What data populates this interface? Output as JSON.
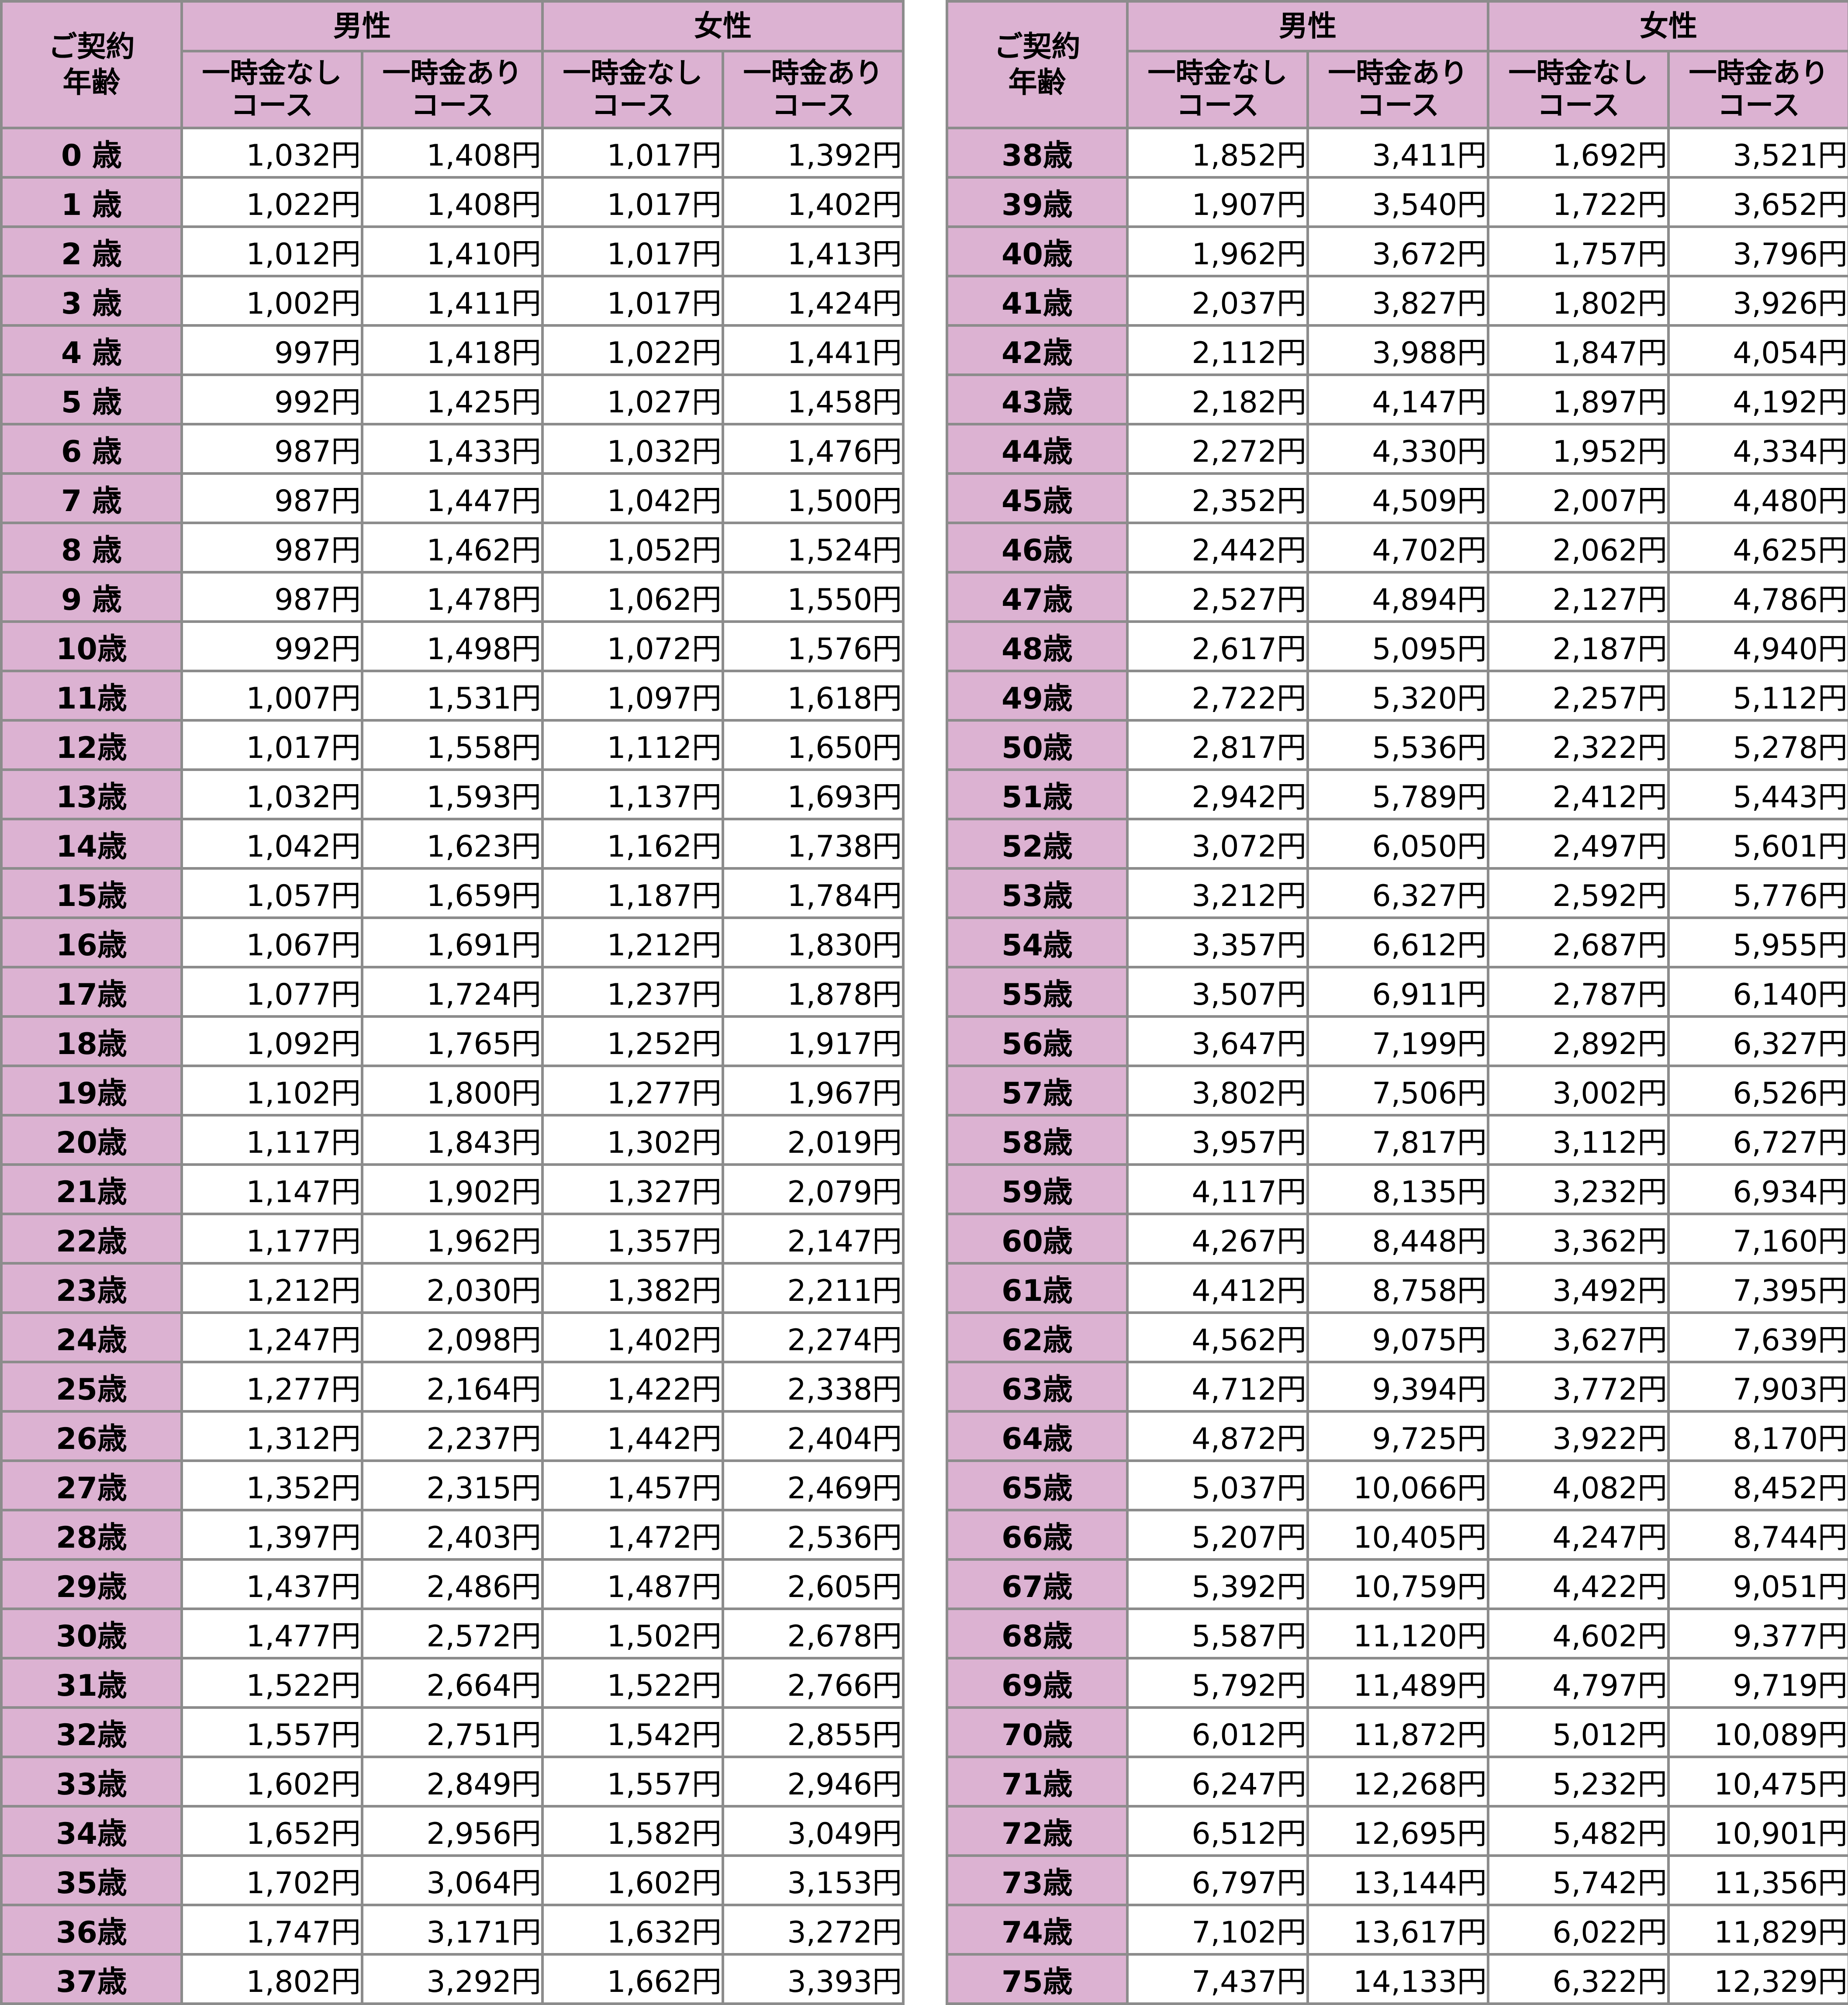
{
  "header": {
    "age_label_line1": "ご契約",
    "age_label_line2": "年齢",
    "male": "男性",
    "female": "女性",
    "course_without_line1": "一時金なし",
    "course_with_line1": "一時金あり",
    "course_line2": "コース"
  },
  "colors": {
    "header_bg": "#dcb2d2",
    "cell_bg": "#ffffff",
    "border": "#8c8c8c"
  },
  "columns": [
    "age",
    "male_without_lump_sum",
    "male_with_lump_sum",
    "female_without_lump_sum",
    "female_with_lump_sum"
  ],
  "left_rows": [
    [
      "0 歳",
      "1,032円",
      "1,408円",
      "1,017円",
      "1,392円"
    ],
    [
      "1 歳",
      "1,022円",
      "1,408円",
      "1,017円",
      "1,402円"
    ],
    [
      "2 歳",
      "1,012円",
      "1,410円",
      "1,017円",
      "1,413円"
    ],
    [
      "3 歳",
      "1,002円",
      "1,411円",
      "1,017円",
      "1,424円"
    ],
    [
      "4 歳",
      "997円",
      "1,418円",
      "1,022円",
      "1,441円"
    ],
    [
      "5 歳",
      "992円",
      "1,425円",
      "1,027円",
      "1,458円"
    ],
    [
      "6 歳",
      "987円",
      "1,433円",
      "1,032円",
      "1,476円"
    ],
    [
      "7 歳",
      "987円",
      "1,447円",
      "1,042円",
      "1,500円"
    ],
    [
      "8 歳",
      "987円",
      "1,462円",
      "1,052円",
      "1,524円"
    ],
    [
      "9 歳",
      "987円",
      "1,478円",
      "1,062円",
      "1,550円"
    ],
    [
      "10歳",
      "992円",
      "1,498円",
      "1,072円",
      "1,576円"
    ],
    [
      "11歳",
      "1,007円",
      "1,531円",
      "1,097円",
      "1,618円"
    ],
    [
      "12歳",
      "1,017円",
      "1,558円",
      "1,112円",
      "1,650円"
    ],
    [
      "13歳",
      "1,032円",
      "1,593円",
      "1,137円",
      "1,693円"
    ],
    [
      "14歳",
      "1,042円",
      "1,623円",
      "1,162円",
      "1,738円"
    ],
    [
      "15歳",
      "1,057円",
      "1,659円",
      "1,187円",
      "1,784円"
    ],
    [
      "16歳",
      "1,067円",
      "1,691円",
      "1,212円",
      "1,830円"
    ],
    [
      "17歳",
      "1,077円",
      "1,724円",
      "1,237円",
      "1,878円"
    ],
    [
      "18歳",
      "1,092円",
      "1,765円",
      "1,252円",
      "1,917円"
    ],
    [
      "19歳",
      "1,102円",
      "1,800円",
      "1,277円",
      "1,967円"
    ],
    [
      "20歳",
      "1,117円",
      "1,843円",
      "1,302円",
      "2,019円"
    ],
    [
      "21歳",
      "1,147円",
      "1,902円",
      "1,327円",
      "2,079円"
    ],
    [
      "22歳",
      "1,177円",
      "1,962円",
      "1,357円",
      "2,147円"
    ],
    [
      "23歳",
      "1,212円",
      "2,030円",
      "1,382円",
      "2,211円"
    ],
    [
      "24歳",
      "1,247円",
      "2,098円",
      "1,402円",
      "2,274円"
    ],
    [
      "25歳",
      "1,277円",
      "2,164円",
      "1,422円",
      "2,338円"
    ],
    [
      "26歳",
      "1,312円",
      "2,237円",
      "1,442円",
      "2,404円"
    ],
    [
      "27歳",
      "1,352円",
      "2,315円",
      "1,457円",
      "2,469円"
    ],
    [
      "28歳",
      "1,397円",
      "2,403円",
      "1,472円",
      "2,536円"
    ],
    [
      "29歳",
      "1,437円",
      "2,486円",
      "1,487円",
      "2,605円"
    ],
    [
      "30歳",
      "1,477円",
      "2,572円",
      "1,502円",
      "2,678円"
    ],
    [
      "31歳",
      "1,522円",
      "2,664円",
      "1,522円",
      "2,766円"
    ],
    [
      "32歳",
      "1,557円",
      "2,751円",
      "1,542円",
      "2,855円"
    ],
    [
      "33歳",
      "1,602円",
      "2,849円",
      "1,557円",
      "2,946円"
    ],
    [
      "34歳",
      "1,652円",
      "2,956円",
      "1,582円",
      "3,049円"
    ],
    [
      "35歳",
      "1,702円",
      "3,064円",
      "1,602円",
      "3,153円"
    ],
    [
      "36歳",
      "1,747円",
      "3,171円",
      "1,632円",
      "3,272円"
    ],
    [
      "37歳",
      "1,802円",
      "3,292円",
      "1,662円",
      "3,393円"
    ]
  ],
  "right_rows": [
    [
      "38歳",
      "1,852円",
      "3,411円",
      "1,692円",
      "3,521円"
    ],
    [
      "39歳",
      "1,907円",
      "3,540円",
      "1,722円",
      "3,652円"
    ],
    [
      "40歳",
      "1,962円",
      "3,672円",
      "1,757円",
      "3,796円"
    ],
    [
      "41歳",
      "2,037円",
      "3,827円",
      "1,802円",
      "3,926円"
    ],
    [
      "42歳",
      "2,112円",
      "3,988円",
      "1,847円",
      "4,054円"
    ],
    [
      "43歳",
      "2,182円",
      "4,147円",
      "1,897円",
      "4,192円"
    ],
    [
      "44歳",
      "2,272円",
      "4,330円",
      "1,952円",
      "4,334円"
    ],
    [
      "45歳",
      "2,352円",
      "4,509円",
      "2,007円",
      "4,480円"
    ],
    [
      "46歳",
      "2,442円",
      "4,702円",
      "2,062円",
      "4,625円"
    ],
    [
      "47歳",
      "2,527円",
      "4,894円",
      "2,127円",
      "4,786円"
    ],
    [
      "48歳",
      "2,617円",
      "5,095円",
      "2,187円",
      "4,940円"
    ],
    [
      "49歳",
      "2,722円",
      "5,320円",
      "2,257円",
      "5,112円"
    ],
    [
      "50歳",
      "2,817円",
      "5,536円",
      "2,322円",
      "5,278円"
    ],
    [
      "51歳",
      "2,942円",
      "5,789円",
      "2,412円",
      "5,443円"
    ],
    [
      "52歳",
      "3,072円",
      "6,050円",
      "2,497円",
      "5,601円"
    ],
    [
      "53歳",
      "3,212円",
      "6,327円",
      "2,592円",
      "5,776円"
    ],
    [
      "54歳",
      "3,357円",
      "6,612円",
      "2,687円",
      "5,955円"
    ],
    [
      "55歳",
      "3,507円",
      "6,911円",
      "2,787円",
      "6,140円"
    ],
    [
      "56歳",
      "3,647円",
      "7,199円",
      "2,892円",
      "6,327円"
    ],
    [
      "57歳",
      "3,802円",
      "7,506円",
      "3,002円",
      "6,526円"
    ],
    [
      "58歳",
      "3,957円",
      "7,817円",
      "3,112円",
      "6,727円"
    ],
    [
      "59歳",
      "4,117円",
      "8,135円",
      "3,232円",
      "6,934円"
    ],
    [
      "60歳",
      "4,267円",
      "8,448円",
      "3,362円",
      "7,160円"
    ],
    [
      "61歳",
      "4,412円",
      "8,758円",
      "3,492円",
      "7,395円"
    ],
    [
      "62歳",
      "4,562円",
      "9,075円",
      "3,627円",
      "7,639円"
    ],
    [
      "63歳",
      "4,712円",
      "9,394円",
      "3,772円",
      "7,903円"
    ],
    [
      "64歳",
      "4,872円",
      "9,725円",
      "3,922円",
      "8,170円"
    ],
    [
      "65歳",
      "5,037円",
      "10,066円",
      "4,082円",
      "8,452円"
    ],
    [
      "66歳",
      "5,207円",
      "10,405円",
      "4,247円",
      "8,744円"
    ],
    [
      "67歳",
      "5,392円",
      "10,759円",
      "4,422円",
      "9,051円"
    ],
    [
      "68歳",
      "5,587円",
      "11,120円",
      "4,602円",
      "9,377円"
    ],
    [
      "69歳",
      "5,792円",
      "11,489円",
      "4,797円",
      "9,719円"
    ],
    [
      "70歳",
      "6,012円",
      "11,872円",
      "5,012円",
      "10,089円"
    ],
    [
      "71歳",
      "6,247円",
      "12,268円",
      "5,232円",
      "10,475円"
    ],
    [
      "72歳",
      "6,512円",
      "12,695円",
      "5,482円",
      "10,901円"
    ],
    [
      "73歳",
      "6,797円",
      "13,144円",
      "5,742円",
      "11,356円"
    ],
    [
      "74歳",
      "7,102円",
      "13,617円",
      "6,022円",
      "11,829円"
    ],
    [
      "75歳",
      "7,437円",
      "14,133円",
      "6,322円",
      "12,329円"
    ]
  ]
}
